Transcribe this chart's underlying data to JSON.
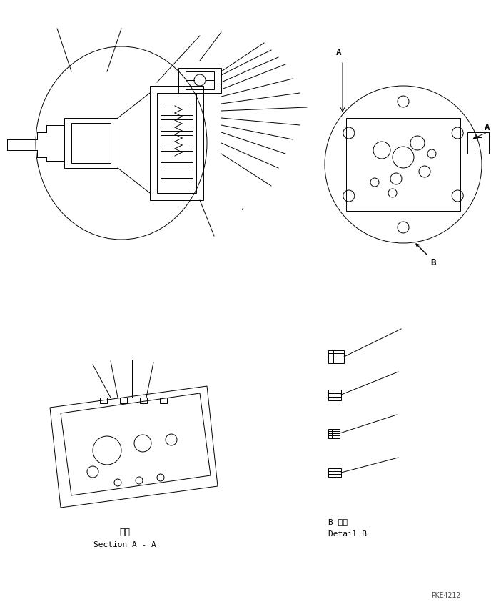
{
  "bg_color": "#ffffff",
  "line_color": "#000000",
  "fig_width": 6.88,
  "fig_height": 8.49,
  "dpi": 100,
  "watermark": "PKE4212",
  "label_section_aa_jp": "断面",
  "label_section_aa_en": "Section A - A",
  "label_detail_b_jp": "B 詳細",
  "label_detail_b_en": "Detail B"
}
